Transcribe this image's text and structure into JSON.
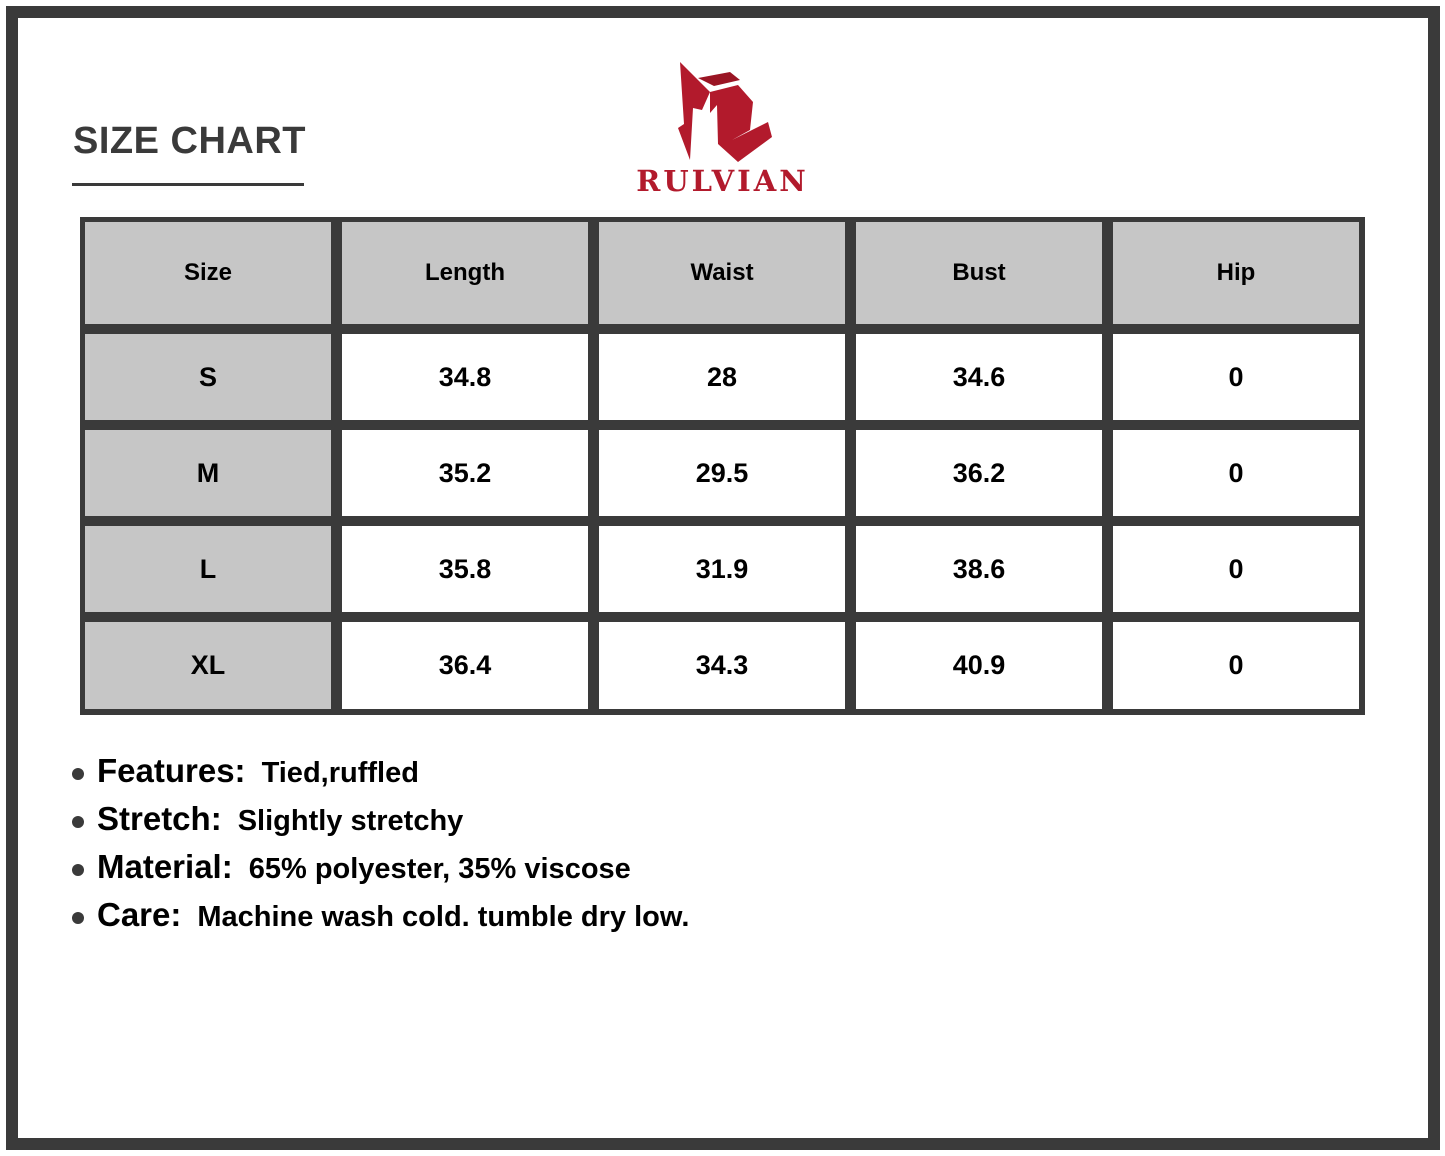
{
  "title": "SIZE CHART",
  "brand": {
    "name": "RULVIAN",
    "color": "#b21a2c"
  },
  "table": {
    "headers": [
      "Size",
      "Length",
      "Waist",
      "Bust",
      "Hip"
    ],
    "rows": [
      [
        "S",
        "34.8",
        "28",
        "34.6",
        "0"
      ],
      [
        "M",
        "35.2",
        "29.5",
        "36.2",
        "0"
      ],
      [
        "L",
        "35.8",
        "31.9",
        "38.6",
        "0"
      ],
      [
        "XL",
        "36.4",
        "34.3",
        "40.9",
        "0"
      ]
    ]
  },
  "features": [
    {
      "label": "Features:",
      "value": "Tied,ruffled"
    },
    {
      "label": "Stretch:",
      "value": "Slightly stretchy"
    },
    {
      "label": "Material:",
      "value": "65% polyester, 35% viscose"
    },
    {
      "label": "Care:",
      "value": "Machine wash cold. tumble dry low."
    }
  ]
}
